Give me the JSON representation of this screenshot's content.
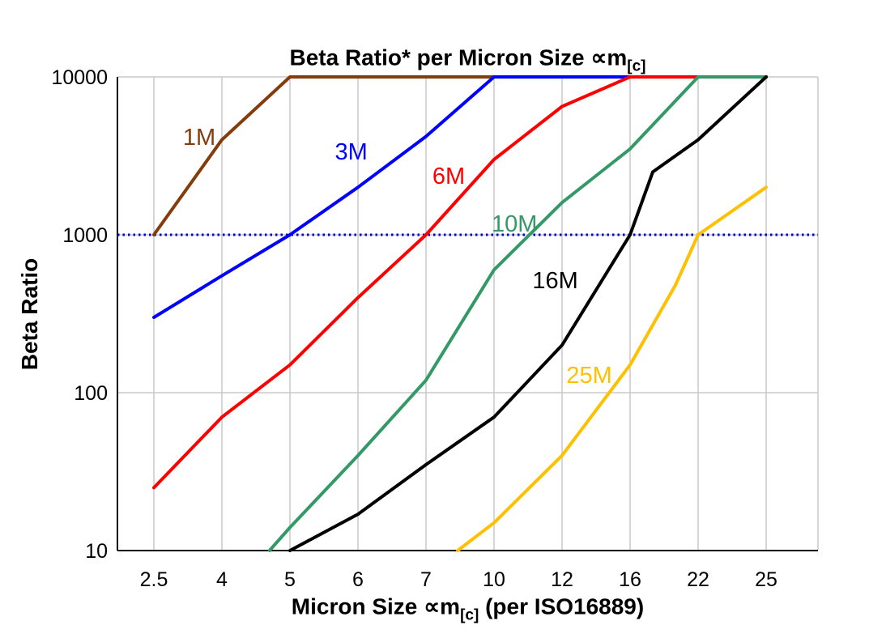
{
  "labels": {
    "title_main": "Beta Ratio* per Micron Size ∝m",
    "title_sub": "[c]",
    "x_title_main": "Micron Size ∝m",
    "x_title_sub": "[c]",
    "x_title_tail": " (per ISO16889)",
    "y_title": "Beta Ratio"
  },
  "chart_data": {
    "type": "line",
    "title": "Beta Ratio* per Micron Size ∝m[c]",
    "xlabel": "Micron Size ∝m[c] (per ISO16889)",
    "ylabel": "Beta Ratio",
    "x_scale": "categorical",
    "y_scale": "log",
    "grid": true,
    "ylim": [
      10,
      10000
    ],
    "y_ticks": [
      10,
      100,
      1000,
      10000
    ],
    "categories": [
      2.5,
      4,
      5,
      6,
      7,
      10,
      12,
      16,
      22,
      25
    ],
    "reference_line": {
      "y": 1000,
      "color": "#0000CC",
      "style": "dotted"
    },
    "series": [
      {
        "name": "1M",
        "color": "#843C0C",
        "label_pos": [
          3.5,
          3700
        ],
        "points": [
          [
            2.5,
            1000
          ],
          [
            4,
            4000
          ],
          [
            5,
            10000
          ],
          [
            25,
            10000
          ]
        ]
      },
      {
        "name": "3M",
        "color": "#0000FF",
        "label_pos": [
          5.9,
          3000
        ],
        "points": [
          [
            2.5,
            300
          ],
          [
            4,
            550
          ],
          [
            5,
            1000
          ],
          [
            6,
            2000
          ],
          [
            7,
            4200
          ],
          [
            10,
            10000
          ],
          [
            25,
            10000
          ]
        ]
      },
      {
        "name": "6M",
        "color": "#FF0000",
        "label_pos": [
          8.0,
          2100
        ],
        "points": [
          [
            2.5,
            25
          ],
          [
            4,
            70
          ],
          [
            5,
            150
          ],
          [
            6,
            400
          ],
          [
            7,
            1000
          ],
          [
            10,
            3000
          ],
          [
            12,
            6500
          ],
          [
            16,
            10000
          ],
          [
            25,
            10000
          ]
        ]
      },
      {
        "name": "10M",
        "color": "#339966",
        "label_pos": [
          10.6,
          1050
        ],
        "points": [
          [
            4.7,
            10
          ],
          [
            5,
            14
          ],
          [
            6,
            40
          ],
          [
            7,
            120
          ],
          [
            10,
            600
          ],
          [
            12,
            1600
          ],
          [
            16,
            3500
          ],
          [
            22,
            10000
          ],
          [
            25,
            10000
          ]
        ]
      },
      {
        "name": "16M",
        "color": "#000000",
        "label_pos": [
          11.8,
          460
        ],
        "points": [
          [
            5,
            10
          ],
          [
            6,
            17
          ],
          [
            7,
            35
          ],
          [
            10,
            70
          ],
          [
            12,
            200
          ],
          [
            16,
            1000
          ],
          [
            18,
            2500
          ],
          [
            22,
            4000
          ],
          [
            25,
            10000
          ]
        ]
      },
      {
        "name": "25M",
        "color": "#FFC000",
        "label_pos": [
          13.6,
          115
        ],
        "points": [
          [
            8.4,
            10
          ],
          [
            10,
            15
          ],
          [
            12,
            40
          ],
          [
            16,
            150
          ],
          [
            20,
            480
          ],
          [
            22,
            1000
          ],
          [
            25,
            2000
          ]
        ]
      }
    ]
  }
}
